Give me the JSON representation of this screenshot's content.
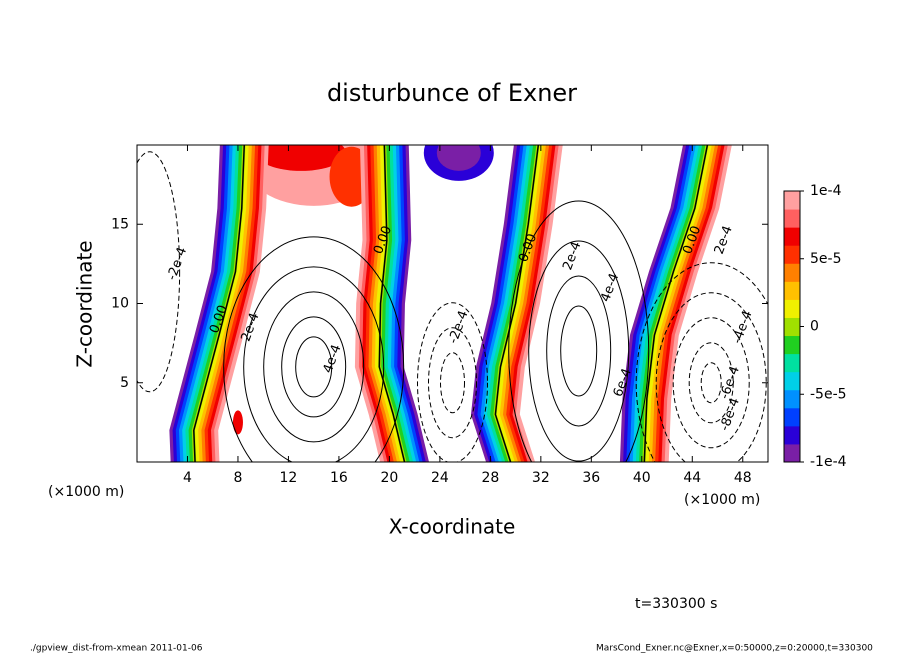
{
  "chart_data": {
    "type": "contour",
    "title": "disturbunce of Exner",
    "x_label": "X-coordinate",
    "y_label": "Z-coordinate",
    "x_unit_left": "(×1000 m)",
    "x_unit_right": "(×1000 m)",
    "xlim": [
      0,
      50
    ],
    "xticks": [
      4,
      8,
      12,
      16,
      20,
      24,
      28,
      32,
      36,
      40,
      44,
      48
    ],
    "ylim": [
      0,
      20
    ],
    "yticks": [
      5,
      10,
      15
    ],
    "colorbar_lim": [
      -0.0001,
      0.0001
    ],
    "colorbar_ticks": [
      {
        "value": 0.0001,
        "label": "1e-4"
      },
      {
        "value": 5e-05,
        "label": "5e-5"
      },
      0,
      {
        "value": -5e-05,
        "label": "-5e-5"
      },
      {
        "value": -0.0001,
        "label": "-1e-4"
      }
    ],
    "colormap": [
      "#7a1fa6",
      "#2a00d8",
      "#0040ff",
      "#0090ff",
      "#00d0e8",
      "#00e0a0",
      "#20d020",
      "#a0e000",
      "#f0f000",
      "#ffc000",
      "#ff8000",
      "#ff3000",
      "#f00000",
      "#ff6060",
      "#ffa0a0"
    ],
    "contour_labels": [
      "-2e-4",
      "0.00",
      "2e-4",
      "4e-4",
      "0.00",
      "-2e-4",
      "0.00",
      "2e-4",
      "4e-4",
      "6e-4",
      "0.00",
      "2e-4",
      "-4e-4",
      "-6e-4",
      "-8e-4"
    ],
    "time_label": "t=330300 s",
    "footer_left": "./gpview_dist-from-xmean  2011-01-06",
    "footer_right": "MarsCond_Exner.nc@Exner,x=0:50000,z=0:20000,t=330300"
  }
}
